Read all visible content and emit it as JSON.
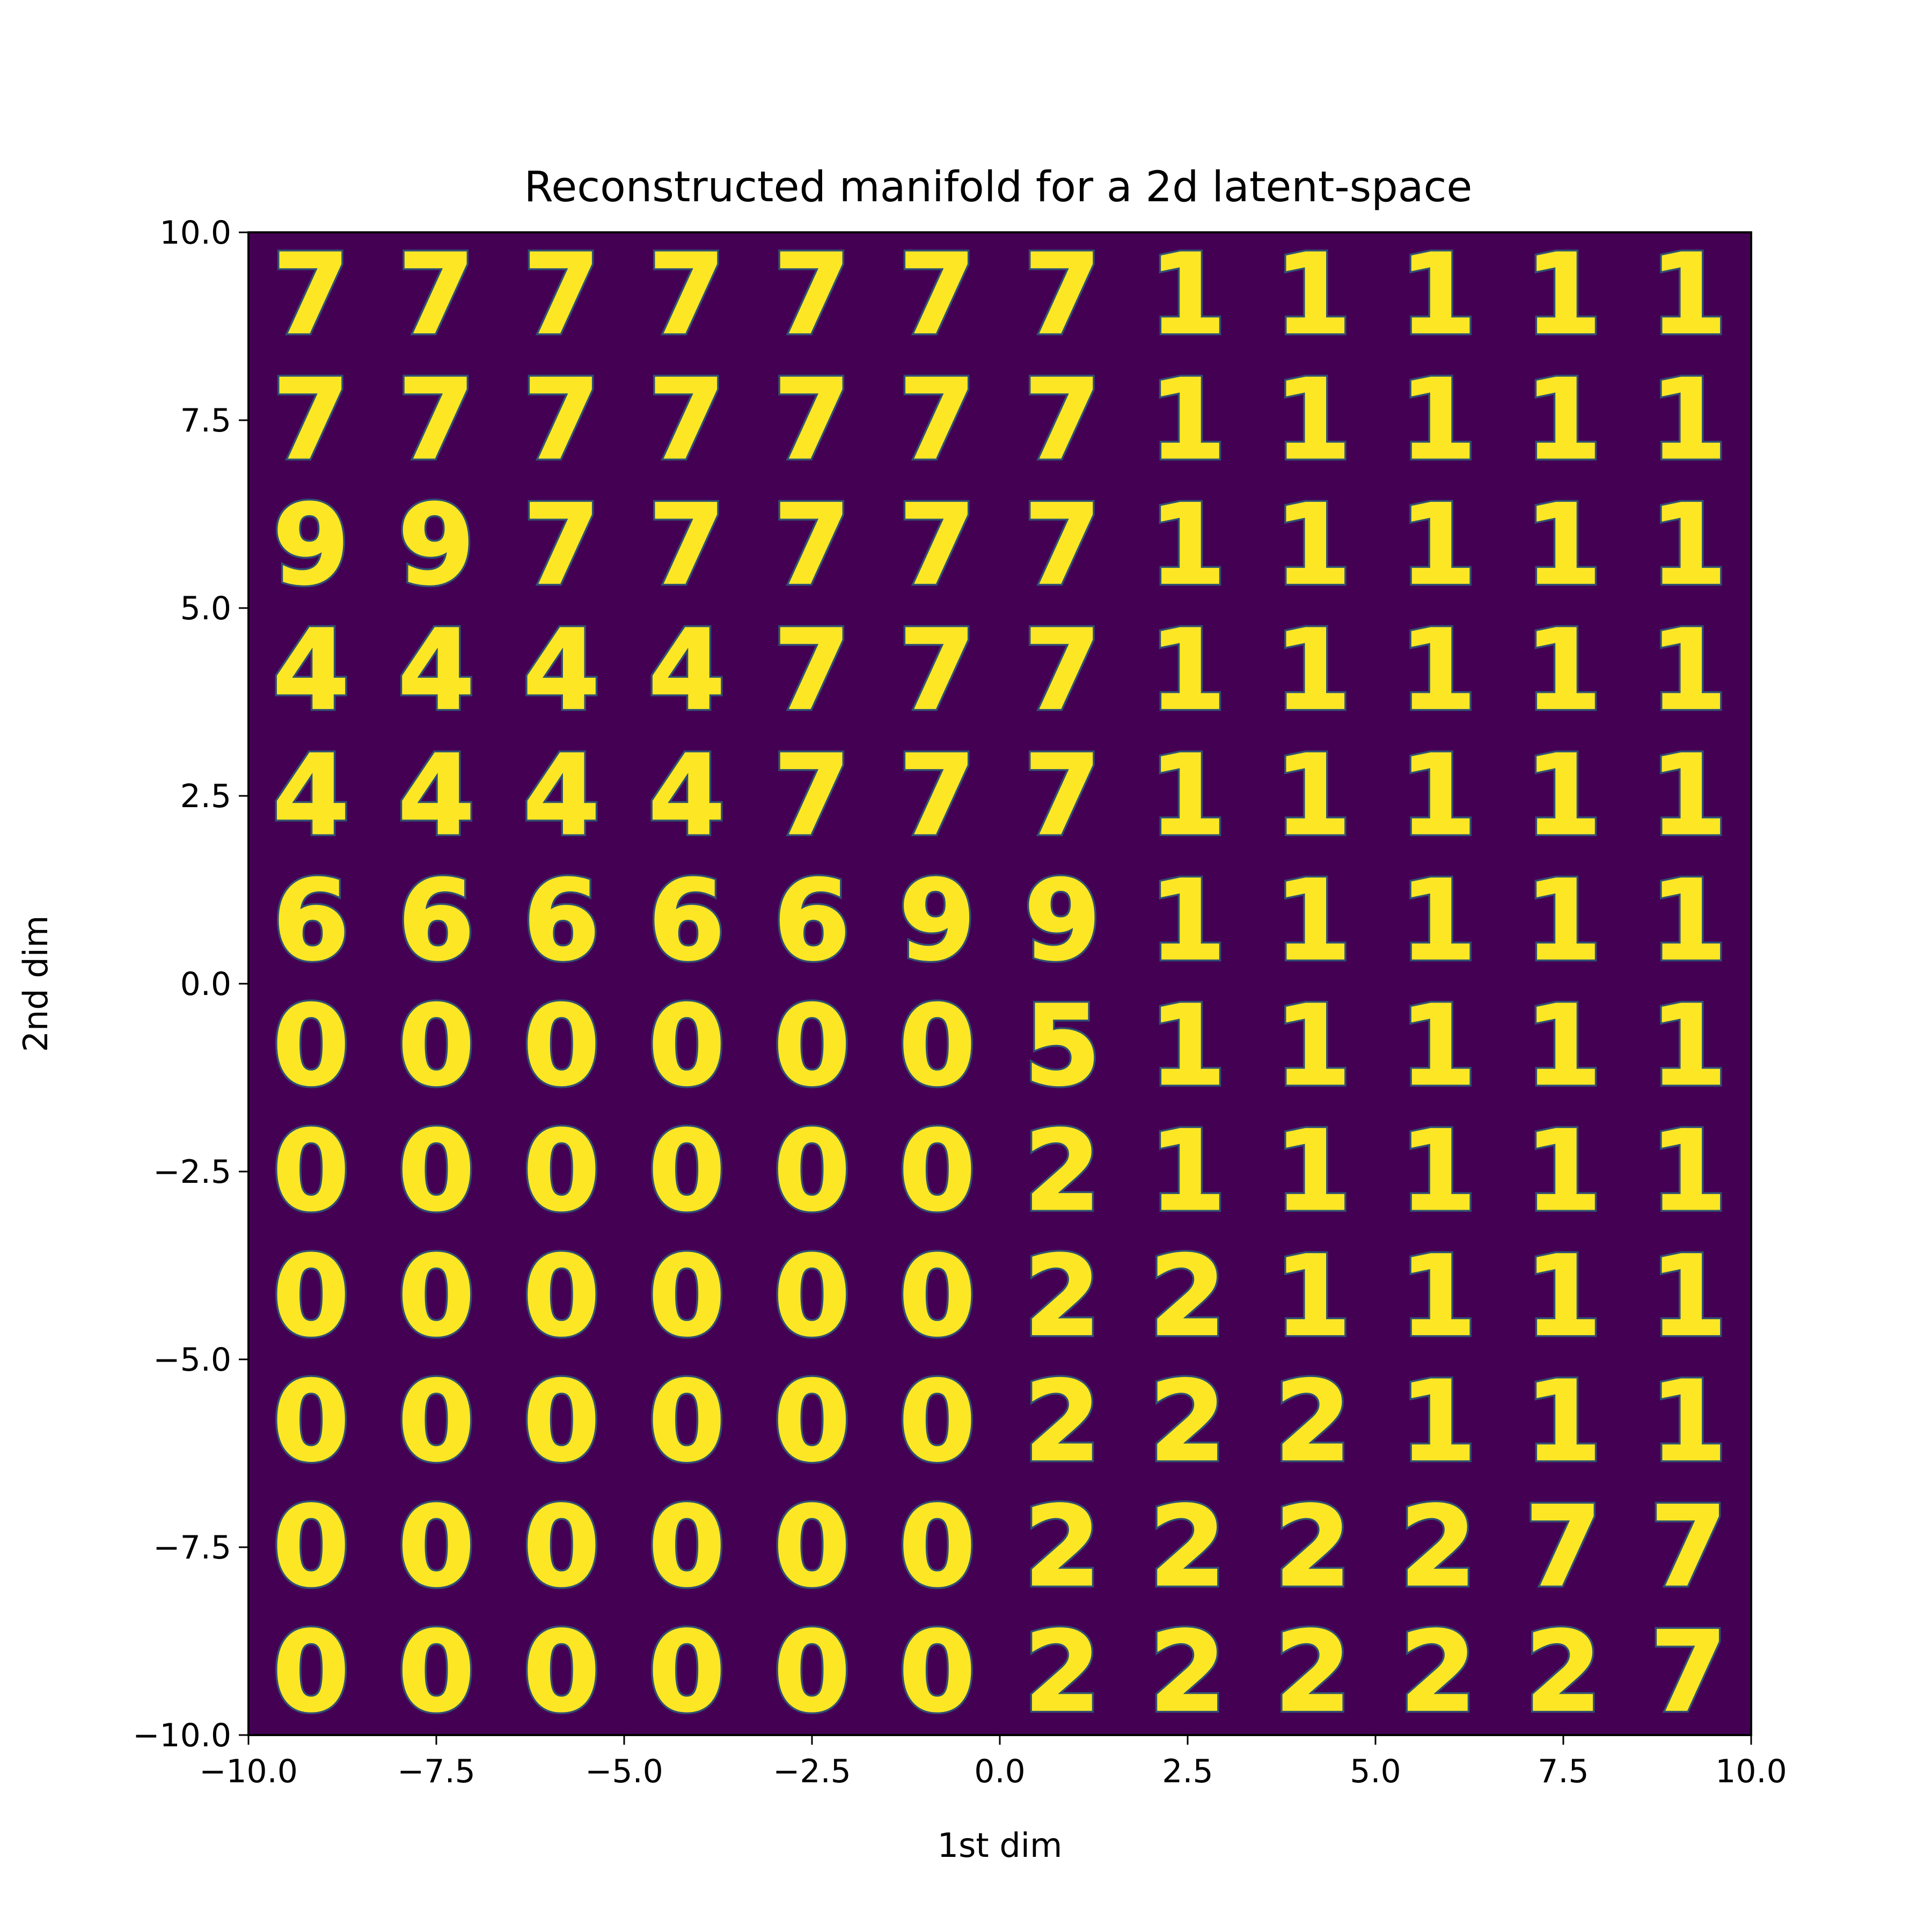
{
  "chart_data": {
    "type": "heatmap",
    "subtype": "latent-space manifold grid of decoded digit images (viridis colormap)",
    "title": "Reconstructed manifold for a 2d latent-space",
    "xlabel": "1st dim",
    "ylabel": "2nd dim",
    "xlim": [
      -10.0,
      10.0
    ],
    "ylim": [
      -10.0,
      10.0
    ],
    "x_ticks": [
      "−10.0",
      "−7.5",
      "−5.0",
      "−2.5",
      "0.0",
      "2.5",
      "5.0",
      "7.5",
      "10.0"
    ],
    "y_ticks": [
      "10.0",
      "7.5",
      "5.0",
      "2.5",
      "0.0",
      "−2.5",
      "−5.0",
      "−7.5",
      "−10.0"
    ],
    "x_tick_values": [
      -10,
      -7.5,
      -5,
      -2.5,
      0,
      2.5,
      5,
      7.5,
      10
    ],
    "y_tick_values": [
      10,
      7.5,
      5,
      2.5,
      0,
      -2.5,
      -5,
      -7.5,
      -10
    ],
    "grid": false,
    "grid_size": [
      12,
      12
    ],
    "colormap": "viridis",
    "colors": {
      "low": "#440154",
      "mid": "#21918c",
      "high": "#fde725"
    },
    "cells": [
      [
        "7",
        "7",
        "7",
        "7",
        "7",
        "7",
        "7",
        "1",
        "1",
        "1",
        "1",
        "1"
      ],
      [
        "7",
        "7",
        "7",
        "7",
        "7",
        "7",
        "7",
        "1",
        "1",
        "1",
        "1",
        "1"
      ],
      [
        "9",
        "9",
        "7",
        "7",
        "7",
        "7",
        "7",
        "1",
        "1",
        "1",
        "1",
        "1"
      ],
      [
        "4",
        "4",
        "4",
        "4",
        "7",
        "7",
        "7",
        "1",
        "1",
        "1",
        "1",
        "1"
      ],
      [
        "4",
        "4",
        "4",
        "4",
        "7",
        "7",
        "7",
        "1",
        "1",
        "1",
        "1",
        "1"
      ],
      [
        "6",
        "6",
        "6",
        "6",
        "6",
        "9",
        "9",
        "1",
        "1",
        "1",
        "1",
        "1"
      ],
      [
        "0",
        "0",
        "0",
        "0",
        "0",
        "0",
        "5",
        "1",
        "1",
        "1",
        "1",
        "1"
      ],
      [
        "0",
        "0",
        "0",
        "0",
        "0",
        "0",
        "2",
        "1",
        "1",
        "1",
        "1",
        "1"
      ],
      [
        "0",
        "0",
        "0",
        "0",
        "0",
        "0",
        "2",
        "2",
        "1",
        "1",
        "1",
        "1"
      ],
      [
        "0",
        "0",
        "0",
        "0",
        "0",
        "0",
        "2",
        "2",
        "2",
        "1",
        "1",
        "1"
      ],
      [
        "0",
        "0",
        "0",
        "0",
        "0",
        "0",
        "2",
        "2",
        "2",
        "2",
        "7",
        "7"
      ],
      [
        "0",
        "0",
        "0",
        "0",
        "0",
        "0",
        "2",
        "2",
        "2",
        "2",
        "2",
        "7"
      ]
    ]
  }
}
